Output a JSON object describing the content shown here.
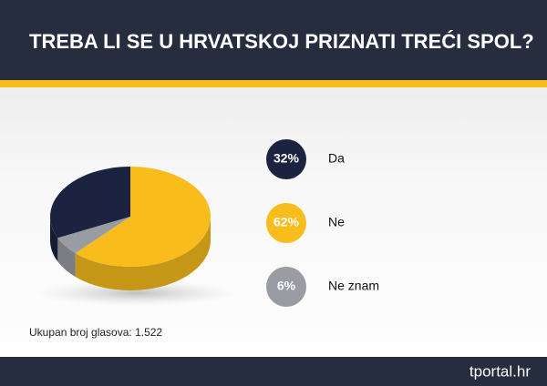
{
  "chart_data": {
    "type": "pie",
    "title": "TREBA LI SE U HRVATSKOJ PRIZNATI TREĆI SPOL?",
    "categories": [
      "Da",
      "Ne",
      "Ne znam"
    ],
    "values": [
      32,
      62,
      6
    ],
    "value_labels": [
      "32%",
      "62%",
      "6%"
    ],
    "colors": [
      "#1b2340",
      "#f8bd1c",
      "#9a9ca4"
    ],
    "note": "Ukupan broj glasova: 1.522",
    "source": "tportal.hr"
  }
}
